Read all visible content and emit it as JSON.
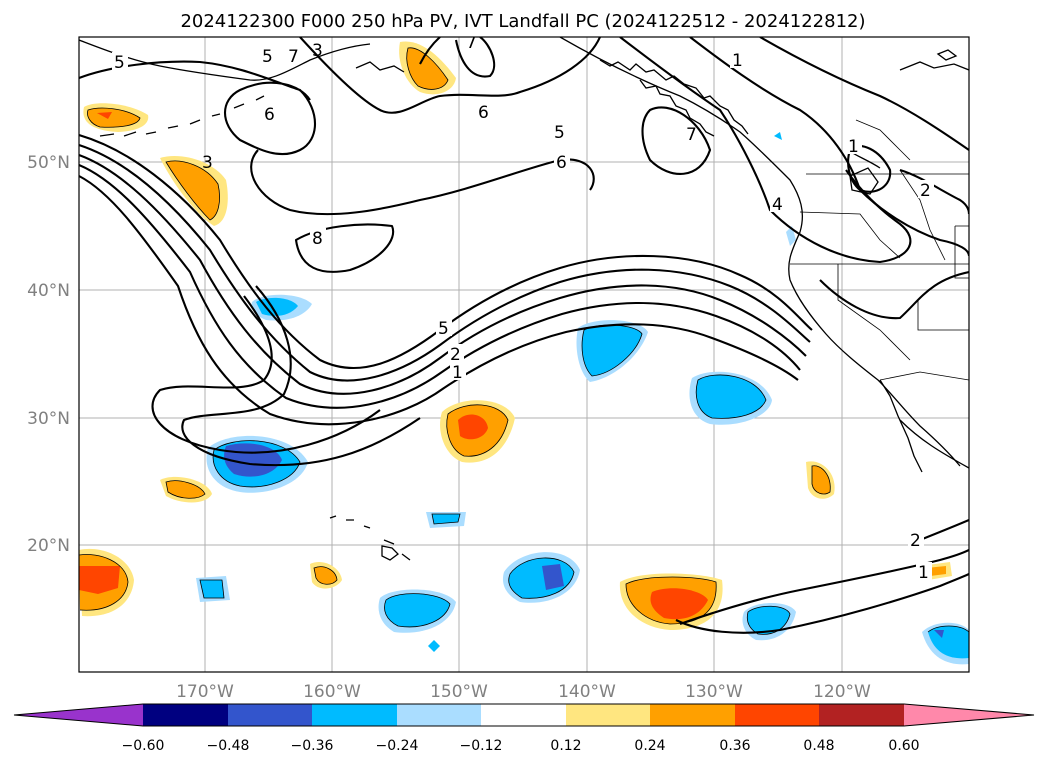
{
  "title": "2024122300 F000 250 hPa PV, IVT Landfall PC (2024122512 - 2024122812)",
  "map": {
    "lon_labels": [
      "170°W",
      "160°W",
      "150°W",
      "140°W",
      "130°W",
      "120°W"
    ],
    "lat_labels": [
      "50°N",
      "40°N",
      "30°N",
      "20°N"
    ],
    "gridlines": "on"
  },
  "pv_contour_labels": [
    "5",
    "5",
    "7",
    "3",
    "7",
    "1",
    "6",
    "6",
    "5",
    "8",
    "5",
    "2",
    "1",
    "7",
    "4",
    "1",
    "2",
    "2",
    "1",
    "3",
    "6"
  ],
  "colorbar": {
    "ticks": [
      "−0.60",
      "−0.48",
      "−0.36",
      "−0.24",
      "−0.12",
      "0.12",
      "0.24",
      "0.36",
      "0.48",
      "0.60"
    ],
    "colors": [
      "#9933cc",
      "#000080",
      "#3355cc",
      "#00bbff",
      "#aaddff",
      "#ffffff",
      "#ffe680",
      "#ffa000",
      "#ff4500",
      "#b22222",
      "#ff88aa"
    ],
    "extend": "both"
  }
}
